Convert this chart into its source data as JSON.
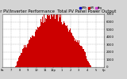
{
  "title": "Solar PV/Inverter Performance  Total PV Panel Power Output",
  "title_fontsize": 3.8,
  "title_color": "#000000",
  "bg_color": "#d4d4d4",
  "plot_bg_color": "#ffffff",
  "grid_color": "#aaaaaa",
  "bar_color": "#cc0000",
  "legend_colors": [
    "#0000cc",
    "#cc0000",
    "#cc44cc"
  ],
  "legend_labels": [
    "kWh",
    "kW",
    "Avg"
  ],
  "tick_fontsize": 2.8,
  "ylim": [
    0,
    7000
  ],
  "ytick_values": [
    0,
    1000,
    2000,
    3000,
    4000,
    5000,
    6000,
    7000
  ],
  "num_bars": 144,
  "mu": 0.5,
  "sigma": 0.21
}
